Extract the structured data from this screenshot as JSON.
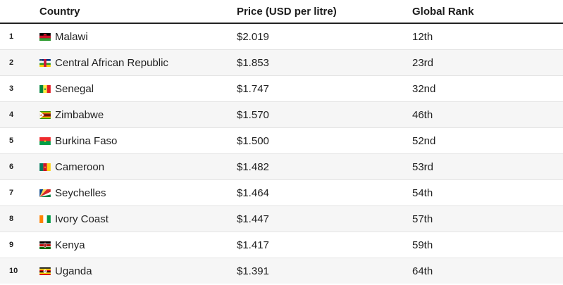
{
  "table": {
    "headers": {
      "number": "",
      "country": "Country",
      "price": "Price (USD per litre)",
      "rank": "Global Rank"
    },
    "rows": [
      {
        "number": "1",
        "country": "Malawi",
        "flag": "malawi",
        "price": "$2.019",
        "rank": "12th"
      },
      {
        "number": "2",
        "country": "Central African Republic",
        "flag": "central-african-republic",
        "price": "$1.853",
        "rank": "23rd"
      },
      {
        "number": "3",
        "country": "Senegal",
        "flag": "senegal",
        "price": "$1.747",
        "rank": "32nd"
      },
      {
        "number": "4",
        "country": "Zimbabwe",
        "flag": "zimbabwe",
        "price": "$1.570",
        "rank": "46th"
      },
      {
        "number": "5",
        "country": "Burkina Faso",
        "flag": "burkina-faso",
        "price": "$1.500",
        "rank": "52nd"
      },
      {
        "number": "6",
        "country": "Cameroon",
        "flag": "cameroon",
        "price": "$1.482",
        "rank": "53rd"
      },
      {
        "number": "7",
        "country": "Seychelles",
        "flag": "seychelles",
        "price": "$1.464",
        "rank": "54th"
      },
      {
        "number": "8",
        "country": "Ivory Coast",
        "flag": "ivory-coast",
        "price": "$1.447",
        "rank": "57th"
      },
      {
        "number": "9",
        "country": "Kenya",
        "flag": "kenya",
        "price": "$1.417",
        "rank": "59th"
      },
      {
        "number": "10",
        "country": "Uganda",
        "flag": "uganda",
        "price": "$1.391",
        "rank": "64th"
      }
    ]
  },
  "colors": {
    "row_alt_background": "#f6f6f6",
    "row_divider": "#e4e4e4",
    "header_underline": "#222222",
    "text": "#212121"
  }
}
